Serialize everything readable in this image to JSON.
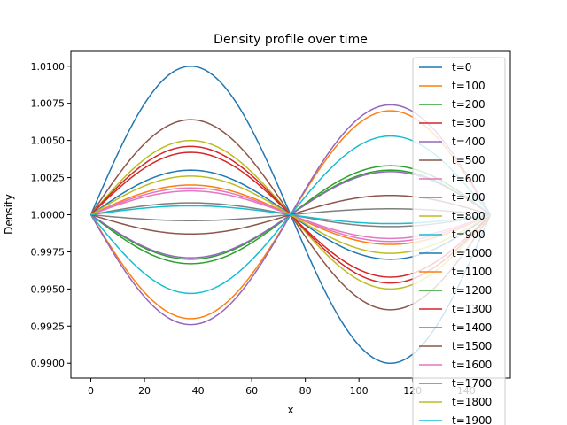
{
  "chart_data": {
    "type": "line",
    "title": "Density profile over time",
    "xlabel": "x",
    "ylabel": "Density",
    "xlim": [
      -7.45,
      156.45
    ],
    "ylim": [
      0.989,
      1.011
    ],
    "x_ticks": [
      0,
      20,
      40,
      60,
      80,
      100,
      120,
      140
    ],
    "y_ticks": [
      0.99,
      0.9925,
      0.995,
      0.9975,
      1.0,
      1.0025,
      1.005,
      1.0075,
      1.01
    ],
    "y_tick_labels": [
      "0.9900",
      "0.9925",
      "0.9950",
      "0.9975",
      "1.0000",
      "1.0025",
      "1.0050",
      "1.0075",
      "1.0100"
    ],
    "grid": false,
    "legend": "upper-right",
    "x_domain": [
      0,
      149
    ],
    "model": "sine",
    "series": [
      {
        "name": "t=0",
        "color": "#1f77b4",
        "amplitude": 0.01
      },
      {
        "name": "t=100",
        "color": "#ff7f0e",
        "amplitude": -0.007
      },
      {
        "name": "t=200",
        "color": "#2ca02c",
        "amplitude": -0.003
      },
      {
        "name": "t=300",
        "color": "#d62728",
        "amplitude": 0.0042
      },
      {
        "name": "t=400",
        "color": "#9467bd",
        "amplitude": -0.0074
      },
      {
        "name": "t=500",
        "color": "#8c564b",
        "amplitude": 0.0064
      },
      {
        "name": "t=600",
        "color": "#e377c2",
        "amplitude": 0.0016
      },
      {
        "name": "t=700",
        "color": "#7f7f7f",
        "amplitude": -0.0004
      },
      {
        "name": "t=800",
        "color": "#bcbd22",
        "amplitude": 0.005
      },
      {
        "name": "t=900",
        "color": "#17becf",
        "amplitude": -0.0053
      },
      {
        "name": "t=1000",
        "color": "#1f77b4",
        "amplitude": 0.003
      },
      {
        "name": "t=1100",
        "color": "#ff7f0e",
        "amplitude": 0.002
      },
      {
        "name": "t=1200",
        "color": "#2ca02c",
        "amplitude": -0.0033
      },
      {
        "name": "t=1300",
        "color": "#d62728",
        "amplitude": 0.0046
      },
      {
        "name": "t=1400",
        "color": "#9467bd",
        "amplitude": -0.0029
      },
      {
        "name": "t=1500",
        "color": "#8c564b",
        "amplitude": -0.0013
      },
      {
        "name": "t=1600",
        "color": "#e377c2",
        "amplitude": 0.0018
      },
      {
        "name": "t=1700",
        "color": "#7f7f7f",
        "amplitude": 0.0008
      },
      {
        "name": "t=1800",
        "color": "#bcbd22",
        "amplitude": 0.0026
      },
      {
        "name": "t=1900",
        "color": "#17becf",
        "amplitude": 0.0006
      }
    ]
  }
}
